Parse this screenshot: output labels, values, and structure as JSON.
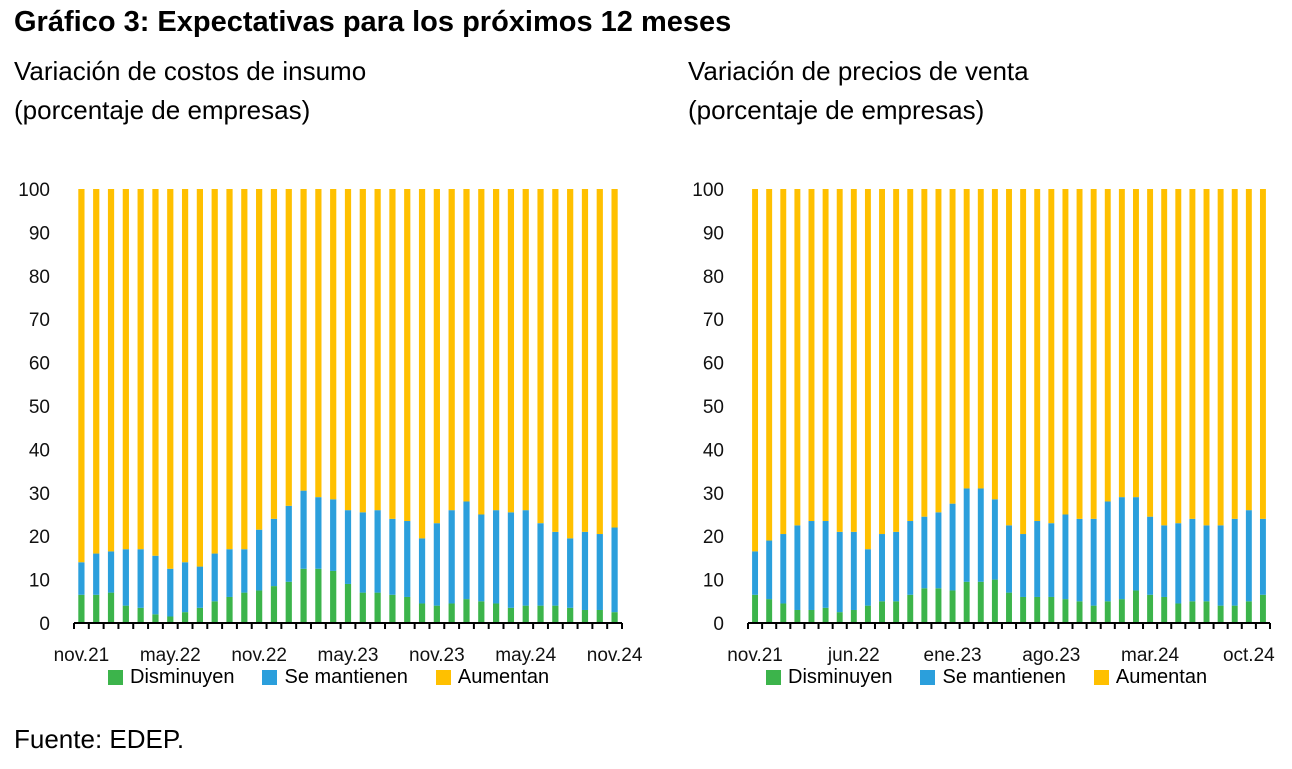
{
  "title": "Gráfico 3: Expectativas para los próximos 12 meses",
  "source": "Fuente: EDEP.",
  "colors": {
    "disminuyen": "#3cb44b",
    "se_mantienen": "#2b9fdc",
    "aumentan": "#ffc000",
    "axis": "#000000"
  },
  "chart_data": [
    {
      "type": "bar",
      "stacked": true,
      "subtitle_line1": "Variación de costos de insumo",
      "subtitle_line2": "(porcentaje de empresas)",
      "ylim": [
        0,
        100
      ],
      "yticks": [
        "0",
        "10",
        "20",
        "30",
        "40",
        "50",
        "60",
        "70",
        "80",
        "90",
        "100"
      ],
      "x_tick_labels": [
        {
          "index": 0,
          "label": "nov.21"
        },
        {
          "index": 6,
          "label": "may.22"
        },
        {
          "index": 12,
          "label": "nov.22"
        },
        {
          "index": 18,
          "label": "may.23"
        },
        {
          "index": 24,
          "label": "nov.23"
        },
        {
          "index": 30,
          "label": "may.24"
        },
        {
          "index": 36,
          "label": "nov.24"
        }
      ],
      "categories": [
        "nov.21",
        "dic.21",
        "ene.22",
        "feb.22",
        "mar.22",
        "abr.22",
        "may.22",
        "jun.22",
        "jul.22",
        "ago.22",
        "sep.22",
        "oct.22",
        "nov.22",
        "dic.22",
        "ene.23",
        "feb.23",
        "mar.23",
        "abr.23",
        "may.23",
        "jun.23",
        "jul.23",
        "ago.23",
        "sep.23",
        "oct.23",
        "nov.23",
        "dic.23",
        "ene.24",
        "feb.24",
        "mar.24",
        "abr.24",
        "may.24",
        "jun.24",
        "jul.24",
        "ago.24",
        "sep.24",
        "oct.24",
        "nov.24"
      ],
      "series": [
        {
          "name": "Disminuyen",
          "values": [
            6.5,
            6.5,
            7.0,
            4.0,
            3.5,
            2.0,
            1.5,
            2.5,
            3.5,
            5.0,
            6.0,
            7.0,
            7.5,
            8.5,
            9.5,
            12.5,
            12.5,
            12.0,
            9.0,
            7.0,
            7.0,
            6.5,
            6.0,
            4.5,
            4.0,
            4.5,
            5.5,
            5.0,
            4.5,
            3.5,
            4.0,
            4.0,
            4.0,
            3.5,
            3.0,
            3.0,
            2.5
          ]
        },
        {
          "name": "Se mantienen",
          "values": [
            7.5,
            9.5,
            9.5,
            13.0,
            13.5,
            13.5,
            11.0,
            11.5,
            9.5,
            11.0,
            11.0,
            10.0,
            14.0,
            15.5,
            17.5,
            18.0,
            16.5,
            16.5,
            17.0,
            18.5,
            19.0,
            17.5,
            17.5,
            15.0,
            19.0,
            21.5,
            22.5,
            20.0,
            21.5,
            22.0,
            22.0,
            19.0,
            17.0,
            16.0,
            18.0,
            17.5,
            19.5
          ]
        },
        {
          "name": "Aumentan",
          "values": [
            86.0,
            84.0,
            83.5,
            83.0,
            83.0,
            84.5,
            87.5,
            86.0,
            87.0,
            84.0,
            83.0,
            83.0,
            78.5,
            76.0,
            73.0,
            69.5,
            71.0,
            71.5,
            74.0,
            74.5,
            74.0,
            76.0,
            76.5,
            80.5,
            77.0,
            74.0,
            72.0,
            75.0,
            74.0,
            74.5,
            74.0,
            77.0,
            79.0,
            80.5,
            79.0,
            79.5,
            78.0
          ]
        }
      ]
    },
    {
      "type": "bar",
      "stacked": true,
      "subtitle_line1": "Variación de precios de venta",
      "subtitle_line2": "(porcentaje de empresas)",
      "ylim": [
        0,
        100
      ],
      "yticks": [
        "0",
        "10",
        "20",
        "30",
        "40",
        "50",
        "60",
        "70",
        "80",
        "90",
        "100"
      ],
      "x_tick_labels": [
        {
          "index": 0,
          "label": "nov.21"
        },
        {
          "index": 7,
          "label": "jun.22"
        },
        {
          "index": 14,
          "label": "ene.23"
        },
        {
          "index": 21,
          "label": "ago.23"
        },
        {
          "index": 28,
          "label": "mar.24"
        },
        {
          "index": 35,
          "label": "oct.24"
        }
      ],
      "categories": [
        "nov.21",
        "dic.21",
        "ene.22",
        "feb.22",
        "mar.22",
        "abr.22",
        "may.22",
        "jun.22",
        "jul.22",
        "ago.22",
        "sep.22",
        "oct.22",
        "nov.22",
        "dic.22",
        "ene.23",
        "feb.23",
        "mar.23",
        "abr.23",
        "may.23",
        "jun.23",
        "jul.23",
        "ago.23",
        "sep.23",
        "oct.23",
        "nov.23",
        "dic.23",
        "ene.24",
        "feb.24",
        "mar.24",
        "abr.24",
        "may.24",
        "jun.24",
        "jul.24",
        "ago.24",
        "sep.24",
        "oct.24",
        "nov.24"
      ],
      "series": [
        {
          "name": "Disminuyen",
          "values": [
            6.5,
            5.5,
            4.5,
            3.0,
            3.0,
            3.5,
            2.5,
            3.0,
            4.0,
            5.0,
            5.0,
            6.5,
            8.0,
            8.0,
            7.5,
            9.5,
            9.5,
            10.0,
            7.0,
            6.0,
            6.0,
            6.0,
            5.5,
            5.0,
            4.0,
            5.0,
            5.5,
            7.5,
            6.5,
            6.0,
            4.5,
            5.0,
            5.0,
            4.0,
            4.0,
            5.0,
            6.5
          ]
        },
        {
          "name": "Se mantienen",
          "values": [
            10.0,
            13.5,
            16.0,
            19.5,
            20.5,
            20.0,
            18.5,
            18.0,
            13.0,
            15.5,
            16.0,
            17.0,
            16.5,
            17.5,
            20.0,
            21.5,
            21.5,
            18.5,
            15.5,
            14.5,
            17.5,
            17.0,
            19.5,
            19.0,
            20.0,
            23.0,
            23.5,
            21.5,
            18.0,
            16.5,
            18.5,
            19.0,
            17.5,
            18.5,
            20.0,
            21.0,
            17.5
          ]
        },
        {
          "name": "Aumentan",
          "values": [
            83.5,
            81.0,
            79.5,
            77.5,
            76.5,
            76.5,
            79.0,
            79.0,
            83.0,
            79.5,
            79.0,
            76.5,
            75.5,
            74.5,
            72.5,
            69.0,
            69.0,
            71.5,
            77.5,
            79.5,
            76.5,
            77.0,
            75.0,
            76.0,
            76.0,
            72.0,
            71.0,
            71.0,
            75.5,
            77.5,
            77.0,
            76.0,
            77.5,
            77.5,
            76.0,
            74.0,
            76.0
          ]
        }
      ]
    }
  ]
}
